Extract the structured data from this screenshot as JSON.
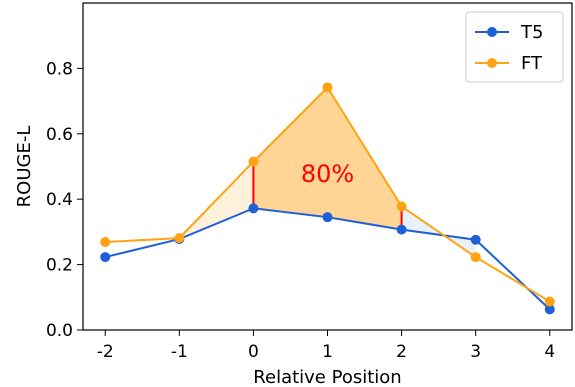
{
  "chart_data": {
    "type": "line",
    "title": "",
    "xlabel": "Relative Position",
    "ylabel": "ROUGE-L",
    "x": [
      -2,
      -1,
      0,
      1,
      2,
      3,
      4
    ],
    "x_tick_labels": [
      "-2",
      "-1",
      "0",
      "1",
      "2",
      "3",
      "4"
    ],
    "y_ticks": [
      0.0,
      0.2,
      0.4,
      0.6,
      0.8
    ],
    "y_tick_labels": [
      "0.0",
      "0.2",
      "0.4",
      "0.6",
      "0.8"
    ],
    "xlim": [
      -2.3,
      4.3
    ],
    "ylim": [
      0.0,
      1.0
    ],
    "grid": false,
    "legend": "top-right",
    "series": [
      {
        "name": "T5",
        "color": "#1f5fd6",
        "values": [
          0.223,
          0.278,
          0.372,
          0.345,
          0.307,
          0.276,
          0.063
        ]
      },
      {
        "name": "FT",
        "color": "#ffa314",
        "values": [
          0.269,
          0.281,
          0.515,
          0.742,
          0.378,
          0.223,
          0.087
        ]
      }
    ],
    "shaded_region": {
      "x_from": 0,
      "x_to": 2,
      "color": "#ffd494"
    },
    "light_shading": {
      "left_color": "#fdf1dc",
      "right_color": "#e8f0fa"
    },
    "highlight_segments": {
      "x": [
        0,
        2
      ],
      "color": "#ff0000"
    },
    "annotation": {
      "text": "80%",
      "x": 1,
      "y": 0.48,
      "color": "#ff0000"
    }
  }
}
